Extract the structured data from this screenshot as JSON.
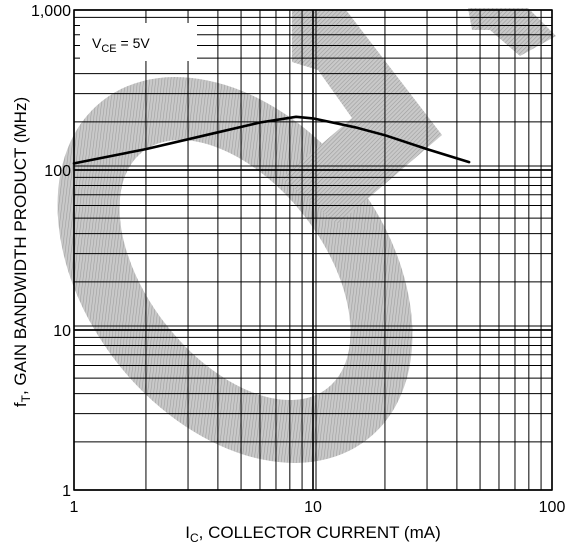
{
  "chart_data": {
    "type": "line",
    "x_scale": "log",
    "y_scale": "log",
    "xlim": [
      1,
      100
    ],
    "ylim": [
      1,
      1000
    ],
    "x_ticks": [
      {
        "value": 1,
        "label": "1"
      },
      {
        "value": 10,
        "label": "10"
      },
      {
        "value": 100,
        "label": "100"
      }
    ],
    "y_ticks": [
      {
        "value": 1,
        "label": "1"
      },
      {
        "value": 10,
        "label": "10"
      },
      {
        "value": 100,
        "label": "100"
      },
      {
        "value": 1000,
        "label": "1,000"
      }
    ],
    "xlabel": {
      "pre": "I",
      "sub": "C",
      "post": ", COLLECTOR CURRENT (mA)"
    },
    "ylabel": {
      "pre": "f",
      "sub": "T",
      "post": ", GAIN BANDWIDTH PRODUCT (MHz)"
    },
    "annotation": {
      "pre": "V",
      "sub": "CE",
      "post": " = 5V"
    },
    "grid": true,
    "series": [
      {
        "x": [
          1,
          2,
          4,
          6,
          8.5,
          10,
          15,
          20,
          30,
          45
        ],
        "y": [
          110,
          135,
          172,
          198,
          215,
          210,
          185,
          165,
          135,
          112
        ]
      }
    ],
    "colors": {
      "line": "#000000",
      "grid": "#000000",
      "watermark": "#a9a9a9"
    }
  }
}
